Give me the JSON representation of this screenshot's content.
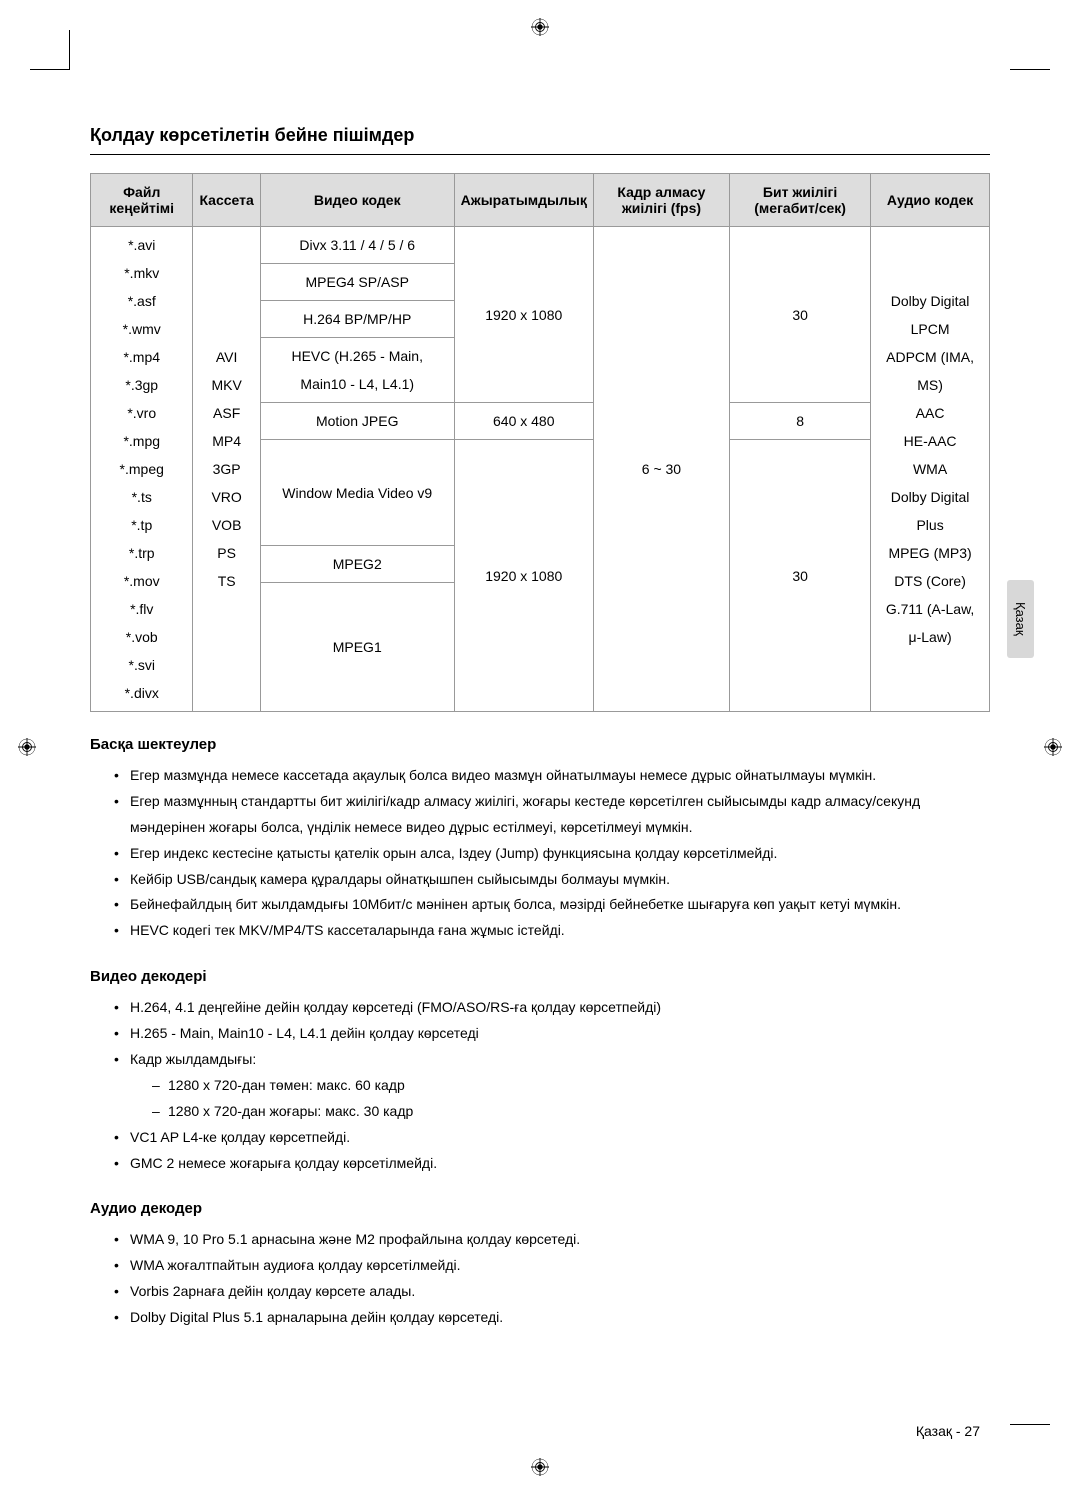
{
  "section_title": "Қолдау көрсетілетін бейне пішімдер",
  "table": {
    "headers": {
      "file_ext": "Файл кеңейтімі",
      "container": "Кассета",
      "video_codec": "Видео кодек",
      "resolution": "Ажыратымдылық",
      "frame_rate": "Кадр алмасу жиілігі (fps)",
      "bit_rate": "Бит жиілігі (мегабит/сек)",
      "audio_codec": "Аудио кодек"
    },
    "file_exts": "*.avi\n*.mkv\n*.asf\n*.wmv\n*.mp4\n*.3gp\n*.vro\n*.mpg\n*.mpeg\n*.ts\n*.tp\n*.trp\n*.mov\n*.flv\n*.vob\n*.svi\n*.divx",
    "containers": "AVI\nMKV\nASF\nMP4\n3GP\nVRO\nVOB\nPS\nTS",
    "codec_group1": "Divx 3.11 / 4 / 5 / 6",
    "codec_group2": "MPEG4 SP/ASP",
    "codec_group3": "H.264 BP/MP/HP",
    "codec_group4": "HEVC (H.265 - Main, Main10 - L4, L4.1)",
    "codec_group5": "Motion JPEG",
    "codec_group6": "Window Media Video v9",
    "codec_group7": "MPEG2",
    "codec_group8": "MPEG1",
    "res1": "1920 x 1080",
    "res2": "640 x 480",
    "res3": "1920 x 1080",
    "fr": "6 ~ 30",
    "br1": "30",
    "br2": "8",
    "br3": "30",
    "audio_text": "Dolby Digital\nLPCM\nADPCM (IMA, MS)\nAAC\nHE-AAC\nWMA\nDolby Digital Plus\nMPEG (MP3)\nDTS (Core)\nG.711 (A-Law, μ-Law)"
  },
  "other_restrictions": {
    "title": "Басқа шектеулер",
    "items": [
      "Егер мазмұнда немесе кассетада ақаулық болса видео мазмұн ойнатылмауы немесе дұрыс ойнатылмауы мүмкін.",
      "Егер мазмұнның стандартты бит жиілігі/кадр алмасу жиілігі, жоғары кестеде көрсетілген сыйысымды кадр алмасу/секунд мәндерінен жоғары болса, үнділік немесе видео дұрыс естілмеуі, көрсетілмеуі мүмкін.",
      "Егер индекс кестесіне қатысты қателік орын алса, Іздеу (Jump) функциясына қолдау көрсетілмейді.",
      "Кейбір USB/сандық камера құралдары ойнатқышпен сыйысымды болмауы мүмкін.",
      "Бейнефайлдың бит жылдамдығы 10Мбит/с мәнінен артық болса, мәзірді бейнебетке шығаруға көп уақыт кетуі мүмкін.",
      "HEVC кодегі тек MKV/MP4/TS кассеталарында ғана жұмыс істейді."
    ]
  },
  "video_decoder": {
    "title": "Видео декодері",
    "items": [
      "H.264, 4.1 деңгейіне дейін қолдау көрсетеді (FMO/ASO/RS-ға қолдау көрсетпейді)",
      "H.265 - Main, Main10 - L4, L4.1 дейін қолдау көрсетеді",
      "Кадр жылдамдығы:",
      "VC1 AP L4-ке қолдау көрсетпейді.",
      "GMC 2 немесе жоғарыға қолдау көрсетілмейді."
    ],
    "sub_items": [
      "1280 x 720-дан төмен: макс. 60 кадр",
      "1280 x 720-дан жоғары: макс. 30 кадр"
    ]
  },
  "audio_decoder": {
    "title": "Аудио декодер",
    "items": [
      "WMA  9, 10 Pro 5.1 арнасына және M2 профайлына қолдау көрсетеді.",
      "WMA жоғалтпайтын аудиоға қолдау көрсетілмейді.",
      "Vorbis 2арнаға дейін қолдау көрсете алады.",
      "Dolby Digital Plus 5.1 арналарына дейін қолдау көрсетеді."
    ]
  },
  "side_tab": "Қазақ",
  "footer": "Қазақ - 27"
}
